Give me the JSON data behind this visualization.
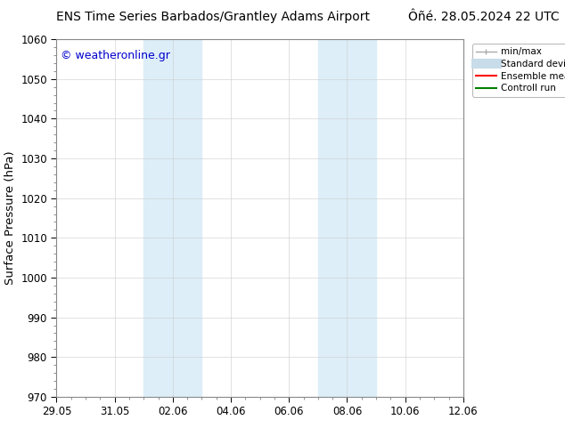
{
  "title_left": "ENS Time Series Barbados/Grantley Adams Airport",
  "title_right": "Ôñé. 28.05.2024 22 UTC",
  "ylabel": "Surface Pressure (hPa)",
  "ylim": [
    970,
    1060
  ],
  "yticks": [
    970,
    980,
    990,
    1000,
    1010,
    1020,
    1030,
    1040,
    1050,
    1060
  ],
  "xtick_labels": [
    "29.05",
    "31.05",
    "02.06",
    "04.06",
    "06.06",
    "08.06",
    "10.06",
    "12.06"
  ],
  "xtick_positions": [
    0,
    2,
    4,
    6,
    8,
    10,
    12,
    14
  ],
  "xlim": [
    0,
    14
  ],
  "shaded_bands": [
    {
      "x_start": 3.0,
      "x_end": 5.0
    },
    {
      "x_start": 9.0,
      "x_end": 11.0
    }
  ],
  "shaded_color": "#ddeef8",
  "bg_color": "#ffffff",
  "plot_bg_color": "#ffffff",
  "watermark_text": "© weatheronline.gr",
  "watermark_color": "#0000cc",
  "legend_entries": [
    {
      "label": "min/max",
      "color": "#aaaaaa",
      "lw": 1.0
    },
    {
      "label": "Standard deviation",
      "color": "#c8dcea",
      "lw": 8
    },
    {
      "label": "Ensemble mean run",
      "color": "#ff0000",
      "lw": 1.5
    },
    {
      "label": "Controll run",
      "color": "#008000",
      "lw": 1.5
    }
  ],
  "tick_label_fontsize": 8.5,
  "axis_label_fontsize": 9.5,
  "title_fontsize": 10,
  "watermark_fontsize": 9,
  "legend_fontsize": 7.5,
  "grid_color": "#cccccc",
  "grid_lw": 0.4,
  "spine_color": "#888888",
  "spine_lw": 0.8
}
